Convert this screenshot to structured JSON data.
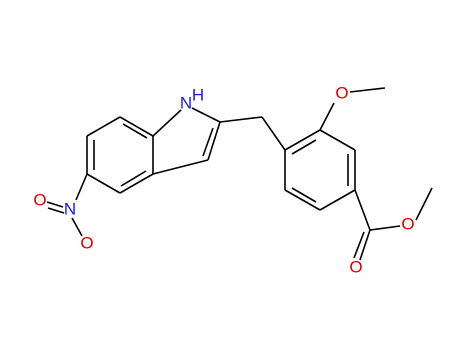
{
  "atom_labels": [
    "N",
    "H",
    "N",
    "O",
    "O",
    "O",
    "O",
    "O"
  ]
}
